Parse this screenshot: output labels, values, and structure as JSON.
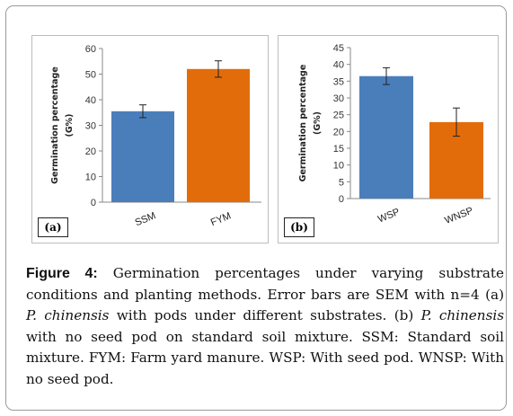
{
  "chart_data": [
    {
      "type": "bar",
      "panel": "(a)",
      "categories": [
        "SSM",
        "FYM"
      ],
      "values": [
        35.5,
        52
      ],
      "errors": [
        2.5,
        3.2
      ],
      "colors": [
        "#4a7ebb",
        "#e36c0a"
      ],
      "ylabel_line1": "Germination percentage",
      "ylabel_line2": "(G%)",
      "ylim": [
        0,
        60
      ],
      "yticks": [
        0,
        10,
        20,
        30,
        40,
        50,
        60
      ],
      "grid": false
    },
    {
      "type": "bar",
      "panel": "(b)",
      "categories": [
        "WSP",
        "WNSP"
      ],
      "values": [
        36.5,
        22.8
      ],
      "errors": [
        2.5,
        4.2
      ],
      "colors": [
        "#4a7ebb",
        "#e36c0a"
      ],
      "ylabel_line1": "Germination percentage",
      "ylabel_line2": "(G%)",
      "ylim": [
        0,
        45
      ],
      "yticks": [
        0,
        5,
        10,
        15,
        20,
        25,
        30,
        35,
        40,
        45
      ],
      "grid": false
    }
  ],
  "caption": {
    "label": "Figure 4:",
    "part1": " Germination percentages under varying substrate conditions and planting methods. Error bars are SEM with n=4 (a) ",
    "species1": "P. chinensis",
    "part2": " with pods under different substrates. (b) ",
    "species2": "P. chinensis",
    "part3": " with no seed pod on standard soil mixture. SSM: Standard soil mixture. FYM: Farm yard manure. WSP: With seed pod. WNSP: With no seed pod."
  }
}
